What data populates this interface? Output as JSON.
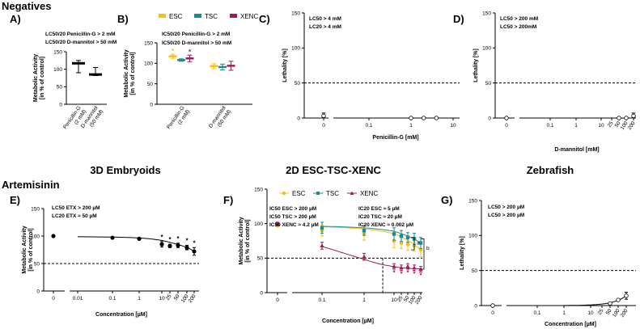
{
  "figure": {
    "section_top": "Negatives",
    "section_bottom": "Artemisinin",
    "col_titles": [
      "3D Embryoids",
      "2D ESC-TSC-XENC",
      "Zebrafish"
    ],
    "panel_letters": [
      "A)",
      "B)",
      "C)",
      "D)",
      "E)",
      "F)",
      "G)"
    ]
  },
  "colors": {
    "ESC": "#f2c018",
    "TSC": "#1a8a96",
    "XENC": "#a0195a",
    "black": "#111111"
  },
  "chart_data": [
    {
      "id": "A",
      "type": "bar",
      "categories": [
        "Penicillin-G\n(2 mM)",
        "D-mannitol\n(50 mM)"
      ],
      "values": [
        117,
        85
      ],
      "err_low": [
        90,
        82
      ],
      "err_high": [
        125,
        105
      ],
      "ylabel": "Metabolic Activity\n[in % of control]",
      "ylim": [
        0,
        150
      ],
      "yticks": [
        0,
        50,
        100,
        150
      ],
      "annotations": [
        "LC50/20 Penicillin-G > 2 mM",
        "LC50/20 D-mannitol > 50 mM"
      ]
    },
    {
      "id": "B",
      "type": "scatter",
      "categories": [
        "Penicillin-G\n(2 mM)",
        "D-mannitol\n(50 mM)"
      ],
      "series": [
        {
          "name": "ESC",
          "values": [
            117,
            93
          ],
          "err": [
            5,
            6
          ]
        },
        {
          "name": "TSC",
          "values": [
            108,
            91
          ],
          "err": [
            3,
            7
          ]
        },
        {
          "name": "XENC",
          "values": [
            112,
            94
          ],
          "err": [
            8,
            11
          ]
        }
      ],
      "ylabel": "Metabolic Activity\n[in % of control]",
      "ylim": [
        0,
        150
      ],
      "yticks": [
        0,
        50,
        100,
        150
      ],
      "stars_over": [
        [
          0,
          0
        ],
        [
          0,
          2
        ]
      ],
      "annotations": [
        "IC50/20 Penicillin-G > 2 mM",
        "IC50/20 D-mannitol > 50 mM"
      ]
    },
    {
      "id": "C",
      "type": "scatter",
      "xlabel": "Penicillin-G [mM]",
      "ylabel": "Lethality [%]",
      "ylim": [
        0,
        150
      ],
      "yticks": [
        0,
        50,
        100,
        150
      ],
      "xticks": [
        "0",
        "0.1",
        "1",
        "10"
      ],
      "threshold": 50,
      "points": [
        {
          "x": 0,
          "y": 3,
          "err": 4
        },
        {
          "x": 1,
          "y": 0
        },
        {
          "x": 2,
          "y": 0
        },
        {
          "x": 4,
          "y": 0
        }
      ],
      "annotations": [
        "LC50 > 4 mM",
        "LC20 > 4 mM"
      ]
    },
    {
      "id": "D",
      "type": "scatter",
      "xlabel": "D-mannitol [mM]",
      "ylabel": "Lethality [%]",
      "ylim": [
        0,
        150
      ],
      "yticks": [
        0,
        50,
        100,
        150
      ],
      "xticks": [
        "0",
        "0.1",
        "1",
        "10",
        "25",
        "50",
        "100",
        "200"
      ],
      "threshold": 50,
      "points": [
        {
          "x": 0,
          "y": 0
        },
        {
          "x": 50,
          "y": 0
        },
        {
          "x": 100,
          "y": 0
        },
        {
          "x": 200,
          "y": 3,
          "err": 4
        }
      ],
      "annotations": [
        "LC50 > 200 mM",
        "LC50 > 200mM"
      ]
    },
    {
      "id": "E",
      "type": "line",
      "xlabel": "Concentration [µM]",
      "ylabel": "Metabolic Activity\n[in % of control]",
      "ylim": [
        0,
        150
      ],
      "yticks": [
        0,
        50,
        100,
        150
      ],
      "xticks": [
        "0",
        "0.01",
        "0.1",
        "1",
        "10",
        "25",
        "50",
        "100",
        "200"
      ],
      "threshold": 50,
      "points": [
        {
          "x": 0,
          "y": 100,
          "err": 2
        },
        {
          "x": 0.1,
          "y": 97,
          "err": 1
        },
        {
          "x": 1,
          "y": 95,
          "err": 1
        },
        {
          "x": 10,
          "y": 85,
          "err": 5,
          "star": true
        },
        {
          "x": 25,
          "y": 82,
          "err": 3,
          "star": true
        },
        {
          "x": 50,
          "y": 83,
          "err": 4,
          "star": true
        },
        {
          "x": 100,
          "y": 79,
          "err": 4,
          "star": true
        },
        {
          "x": 200,
          "y": 72,
          "err": 7,
          "star": true
        }
      ],
      "annotations": [
        "LC50 ETX > 200 µM",
        "LC20 ETX ≈ 50 µM"
      ]
    },
    {
      "id": "F",
      "type": "line",
      "xlabel": "Concentration [µM]",
      "ylabel": "Metabolic Activity\n[in % of control]",
      "ylim": [
        0,
        150
      ],
      "yticks": [
        0,
        50,
        100,
        150
      ],
      "xticks": [
        "0",
        "0.1",
        "1",
        "10",
        "25",
        "50",
        "100",
        "200"
      ],
      "threshold": 50,
      "series": [
        {
          "name": "ESC",
          "points": [
            {
              "x": 0,
              "y": 98,
              "err": 3
            },
            {
              "x": 0.1,
              "y": 90,
              "err": 8
            },
            {
              "x": 1,
              "y": 86,
              "err": 10
            },
            {
              "x": 10,
              "y": 75,
              "err": 10
            },
            {
              "x": 25,
              "y": 72,
              "err": 8
            },
            {
              "x": 50,
              "y": 70,
              "err": 9
            },
            {
              "x": 100,
              "y": 68,
              "err": 8
            },
            {
              "x": 200,
              "y": 62,
              "err": 10
            }
          ]
        },
        {
          "name": "TSC",
          "points": [
            {
              "x": 0,
              "y": 99,
              "err": 2
            },
            {
              "x": 0.1,
              "y": 94,
              "err": 8
            },
            {
              "x": 1,
              "y": 90,
              "err": 7
            },
            {
              "x": 10,
              "y": 85,
              "err": 9
            },
            {
              "x": 25,
              "y": 82,
              "err": 8
            },
            {
              "x": 50,
              "y": 80,
              "err": 7
            },
            {
              "x": 100,
              "y": 78,
              "err": 8
            },
            {
              "x": 200,
              "y": 72,
              "err": 8
            }
          ]
        },
        {
          "name": "XENC",
          "points": [
            {
              "x": 0,
              "y": 100,
              "err": 2
            },
            {
              "x": 0.1,
              "y": 68,
              "err": 5
            },
            {
              "x": 1,
              "y": 52,
              "err": 5
            },
            {
              "x": 10,
              "y": 38,
              "err": 4
            },
            {
              "x": 25,
              "y": 36,
              "err": 4
            },
            {
              "x": 50,
              "y": 38,
              "err": 4
            },
            {
              "x": 100,
              "y": 36,
              "err": 4
            },
            {
              "x": 200,
              "y": 34,
              "err": 4
            }
          ]
        }
      ],
      "brackets": [
        "a",
        "b"
      ],
      "annotations_left": [
        "IC50 ESC > 200 µM",
        "IC50 TSC > 200 µM",
        "IC50 XENC ≈ 4.2 µM"
      ],
      "annotations_right": [
        "IC20 ESC ≈ 5 µM",
        "IC20 TSC ≈ 20 µM",
        "IC20 XENC ≈ 0.002 µM"
      ]
    },
    {
      "id": "G",
      "type": "scatter",
      "xlabel": "Concentration [µM]",
      "ylabel": "Lethality [%]",
      "ylim": [
        0,
        150
      ],
      "yticks": [
        0,
        50,
        100,
        150
      ],
      "xticks": [
        "0",
        "0.1",
        "1",
        "10",
        "25",
        "50",
        "100",
        "200"
      ],
      "threshold": 50,
      "points": [
        {
          "x": 0,
          "y": 0
        },
        {
          "x": 50,
          "y": 3
        },
        {
          "x": 100,
          "y": 8
        },
        {
          "x": 200,
          "y": 14,
          "err": 5
        }
      ],
      "annotations": [
        "LC50 > 200 µM",
        "LC50 > 200 µM"
      ]
    }
  ]
}
